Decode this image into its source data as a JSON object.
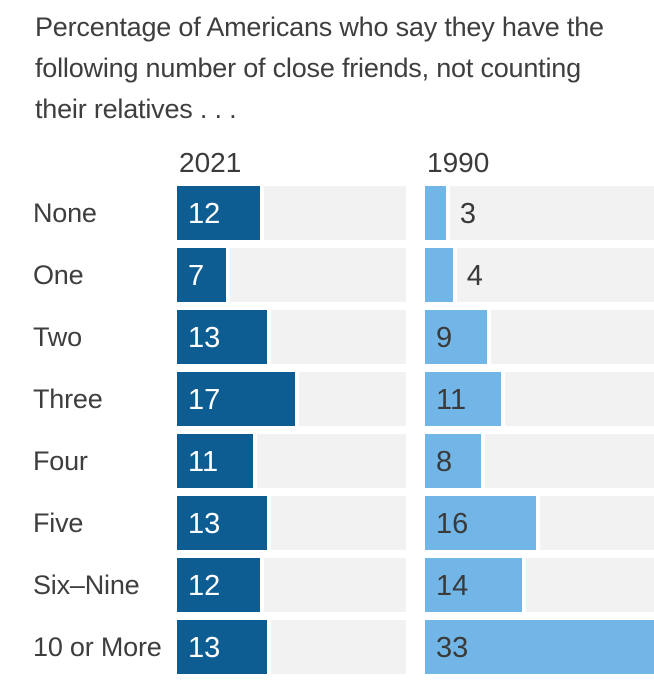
{
  "title_lines": [
    "Percentage of Americans who say they have the",
    "following number of close friends, not counting",
    "their relatives . . ."
  ],
  "columns": {
    "col1": "2021",
    "col2": "1990"
  },
  "chart_data": {
    "type": "bar",
    "orientation": "horizontal",
    "title": "Percentage of Americans who say they have the following number of close friends, not counting their relatives . . .",
    "categories": [
      "None",
      "One",
      "Two",
      "Three",
      "Four",
      "Five",
      "Six–Nine",
      "10 or More"
    ],
    "series": [
      {
        "name": "2021",
        "values": [
          12,
          7,
          13,
          17,
          11,
          13,
          12,
          13
        ],
        "color": "#0e5d92",
        "label_color": "#ffffff"
      },
      {
        "name": "1990",
        "values": [
          3,
          4,
          9,
          11,
          8,
          16,
          14,
          33
        ],
        "color": "#72b6e8",
        "label_color": "#3a3a3a"
      }
    ],
    "xlim": [
      0,
      33
    ],
    "value_labels_shown": true,
    "legend_position": "column-headers-above",
    "grid": false,
    "colors": {
      "track_background": "#f2f2f3",
      "text": "#3e3e3e",
      "outside_label_text": "#3a3a3a"
    }
  }
}
